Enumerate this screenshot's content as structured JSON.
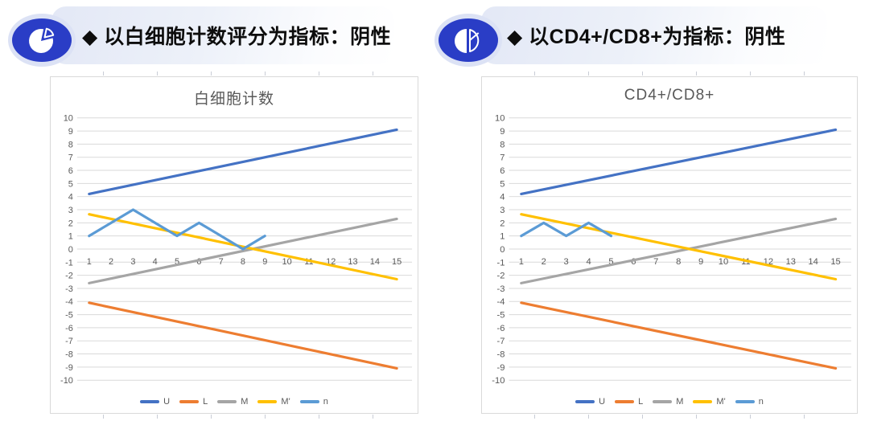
{
  "headers": [
    {
      "icon": "pie-chart-icon",
      "label": "◆ 以白细胞计数评分为指标：阴性"
    },
    {
      "icon": "half-pie-chart-icon",
      "label": "◆ 以CD4+/CD8+为指标：阴性"
    }
  ],
  "colors": {
    "icon_blue": "#2A3DC6",
    "icon_halo": "#DCE2F5",
    "badge_bg_start": "#E3E8F6",
    "grid": "#D9D9D9",
    "tick_text": "#595959",
    "title_text": "#595959"
  },
  "chart_data": [
    {
      "type": "line",
      "title": "白细胞计数",
      "xlabel": "",
      "ylabel": "",
      "x_ticks": [
        1,
        2,
        3,
        4,
        5,
        6,
        7,
        8,
        9,
        10,
        11,
        12,
        13,
        14,
        15
      ],
      "ylim": [
        -10,
        10
      ],
      "y_tick_step": 1,
      "grid": true,
      "legend_position": "bottom",
      "series": [
        {
          "name": "U",
          "color": "#4472C4",
          "points": [
            [
              1,
              4.2
            ],
            [
              15,
              9.1
            ]
          ]
        },
        {
          "name": "L",
          "color": "#ED7D31",
          "points": [
            [
              1,
              -4.1
            ],
            [
              15,
              -9.1
            ]
          ]
        },
        {
          "name": "M",
          "color": "#A5A5A5",
          "points": [
            [
              1,
              -2.6
            ],
            [
              15,
              2.3
            ]
          ]
        },
        {
          "name": "M'",
          "color": "#FFC000",
          "points": [
            [
              1,
              2.65
            ],
            [
              15,
              -2.3
            ]
          ]
        },
        {
          "name": "n",
          "color": "#5B9BD5",
          "points": [
            [
              1,
              1
            ],
            [
              2,
              2
            ],
            [
              3,
              3
            ],
            [
              4,
              2
            ],
            [
              5,
              1
            ],
            [
              6,
              2
            ],
            [
              7,
              1
            ],
            [
              8,
              0
            ],
            [
              9,
              1
            ]
          ]
        }
      ]
    },
    {
      "type": "line",
      "title": "CD4+/CD8+",
      "xlabel": "",
      "ylabel": "",
      "x_ticks": [
        1,
        2,
        3,
        4,
        5,
        6,
        7,
        8,
        9,
        10,
        11,
        12,
        13,
        14,
        15
      ],
      "ylim": [
        -10,
        10
      ],
      "y_tick_step": 1,
      "grid": true,
      "legend_position": "bottom",
      "series": [
        {
          "name": "U",
          "color": "#4472C4",
          "points": [
            [
              1,
              4.2
            ],
            [
              15,
              9.1
            ]
          ]
        },
        {
          "name": "L",
          "color": "#ED7D31",
          "points": [
            [
              1,
              -4.1
            ],
            [
              15,
              -9.1
            ]
          ]
        },
        {
          "name": "M",
          "color": "#A5A5A5",
          "points": [
            [
              1,
              -2.6
            ],
            [
              15,
              2.3
            ]
          ]
        },
        {
          "name": "M'",
          "color": "#FFC000",
          "points": [
            [
              1,
              2.65
            ],
            [
              15,
              -2.3
            ]
          ]
        },
        {
          "name": "n",
          "color": "#5B9BD5",
          "points": [
            [
              1,
              1
            ],
            [
              2,
              2
            ],
            [
              3,
              1
            ],
            [
              4,
              2
            ],
            [
              5,
              1
            ]
          ]
        }
      ]
    }
  ]
}
